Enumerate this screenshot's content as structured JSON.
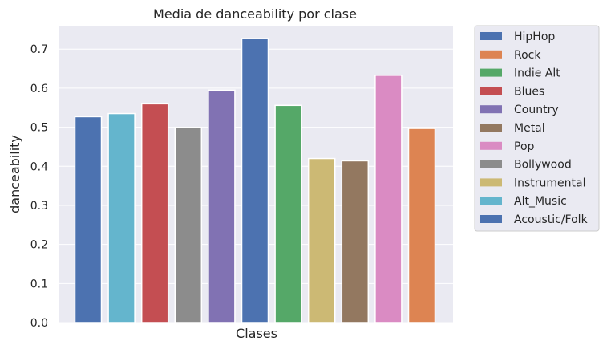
{
  "chart_data": {
    "type": "bar",
    "title": "Media de danceability por clase",
    "xlabel": "Clases",
    "ylabel": "danceability",
    "ylim": [
      0,
      0.76
    ],
    "yticks": [
      "0.0",
      "0.1",
      "0.2",
      "0.3",
      "0.4",
      "0.5",
      "0.6",
      "0.7"
    ],
    "grid": true,
    "background": "#eaeaf2",
    "legend_position": "outside-right",
    "series": [
      {
        "name": "HipHop",
        "value": 0.527,
        "color": "#4c72b0"
      },
      {
        "name": "Alt_Music",
        "value": 0.535,
        "color": "#64b5cd"
      },
      {
        "name": "Blues",
        "value": 0.56,
        "color": "#c44e52"
      },
      {
        "name": "Bollywood",
        "value": 0.499,
        "color": "#8c8c8c"
      },
      {
        "name": "Country",
        "value": 0.595,
        "color": "#8172b3"
      },
      {
        "name": "Acoustic/Folk",
        "value": 0.727,
        "color": "#4c72b0"
      },
      {
        "name": "Indie Alt",
        "value": 0.556,
        "color": "#55a868"
      },
      {
        "name": "Instrumental",
        "value": 0.42,
        "color": "#ccb974"
      },
      {
        "name": "Metal",
        "value": 0.414,
        "color": "#937860"
      },
      {
        "name": "Pop",
        "value": 0.633,
        "color": "#da8bc3"
      },
      {
        "name": "Rock",
        "value": 0.497,
        "color": "#dd8452"
      }
    ],
    "legend_order": [
      "HipHop",
      "Rock",
      "Indie Alt",
      "Blues",
      "Country",
      "Metal",
      "Pop",
      "Bollywood",
      "Instrumental",
      "Alt_Music",
      "Acoustic/Folk"
    ]
  }
}
